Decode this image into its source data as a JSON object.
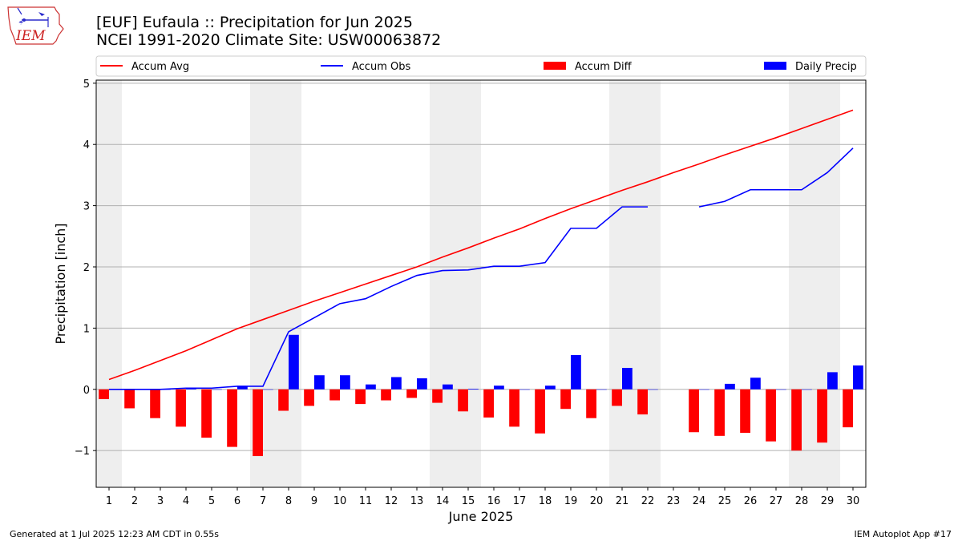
{
  "header": {
    "title_line1": "[EUF] Eufaula :: Precipitation for Jun 2025",
    "title_line2": "NCEI 1991-2020 Climate Site: USW00063872",
    "logo_text": "IEM"
  },
  "footer": {
    "left": "Generated at 1 Jul 2025 12:23 AM CDT in 0.55s",
    "right": "IEM Autoplot App #17"
  },
  "colors": {
    "avg": "#ff0000",
    "obs": "#0000ff",
    "diff": "#ff0000",
    "daily": "#0000ff",
    "weekend_shade": "#eeeeee",
    "grid": "#b0b0b0"
  },
  "chart_data": {
    "type": "bar",
    "xlabel": "June 2025",
    "ylabel": "Precipitation [inch]",
    "ylim": [
      -1.6,
      5.05
    ],
    "yticks": [
      -1,
      0,
      1,
      2,
      3,
      4,
      5
    ],
    "ytick_labels": [
      "−1",
      "0",
      "1",
      "2",
      "3",
      "4",
      "5"
    ],
    "grid": "horizontal",
    "legend_placement": "top",
    "days": [
      1,
      2,
      3,
      4,
      5,
      6,
      7,
      8,
      9,
      10,
      11,
      12,
      13,
      14,
      15,
      16,
      17,
      18,
      19,
      20,
      21,
      22,
      23,
      24,
      25,
      26,
      27,
      28,
      29,
      30
    ],
    "weekend_shading": [
      [
        1,
        1
      ],
      [
        7,
        8
      ],
      [
        14,
        15
      ],
      [
        21,
        22
      ],
      [
        28,
        29
      ]
    ],
    "legend": [
      {
        "name": "Accum Avg",
        "kind": "line",
        "color": "#ff0000"
      },
      {
        "name": "Accum Obs",
        "kind": "line",
        "color": "#0000ff"
      },
      {
        "name": "Accum Diff",
        "kind": "bar",
        "color": "#ff0000"
      },
      {
        "name": "Daily Precip",
        "kind": "bar",
        "color": "#0000ff"
      }
    ],
    "series": [
      {
        "name": "Accum Avg",
        "kind": "line",
        "values": [
          0.16,
          0.31,
          0.47,
          0.63,
          0.81,
          0.99,
          1.14,
          1.29,
          1.44,
          1.58,
          1.72,
          1.86,
          2.0,
          2.16,
          2.31,
          2.47,
          2.62,
          2.79,
          2.95,
          3.1,
          3.25,
          3.39,
          3.54,
          3.68,
          3.83,
          3.97,
          4.11,
          4.26,
          4.41,
          4.56
        ]
      },
      {
        "name": "Accum Obs",
        "kind": "line",
        "values": [
          0.0,
          0.0,
          0.0,
          0.02,
          0.02,
          0.05,
          0.05,
          0.94,
          1.17,
          1.4,
          1.48,
          1.68,
          1.86,
          1.94,
          1.95,
          2.01,
          2.01,
          2.07,
          2.63,
          2.63,
          2.98,
          2.98,
          null,
          2.98,
          3.07,
          3.26,
          3.26,
          3.26,
          3.54,
          3.94
        ]
      },
      {
        "name": "Accum Diff",
        "kind": "bar",
        "values": [
          -0.16,
          -0.31,
          -0.47,
          -0.61,
          -0.79,
          -0.94,
          -1.09,
          -0.35,
          -0.27,
          -0.18,
          -0.24,
          -0.18,
          -0.14,
          -0.22,
          -0.36,
          -0.46,
          -0.61,
          -0.72,
          -0.32,
          -0.47,
          -0.27,
          -0.41,
          null,
          -0.7,
          -0.76,
          -0.71,
          -0.85,
          -1.0,
          -0.87,
          -0.62
        ]
      },
      {
        "name": "Daily Precip",
        "kind": "bar",
        "values": [
          0.0,
          0.0,
          0.0,
          0.02,
          0.0,
          0.05,
          0.0,
          0.89,
          0.23,
          0.23,
          0.08,
          0.2,
          0.18,
          0.08,
          0.01,
          0.06,
          0.0,
          0.06,
          0.56,
          0.0,
          0.35,
          0.0,
          null,
          0.0,
          0.09,
          0.19,
          0.0,
          0.0,
          0.28,
          0.39
        ]
      }
    ]
  }
}
